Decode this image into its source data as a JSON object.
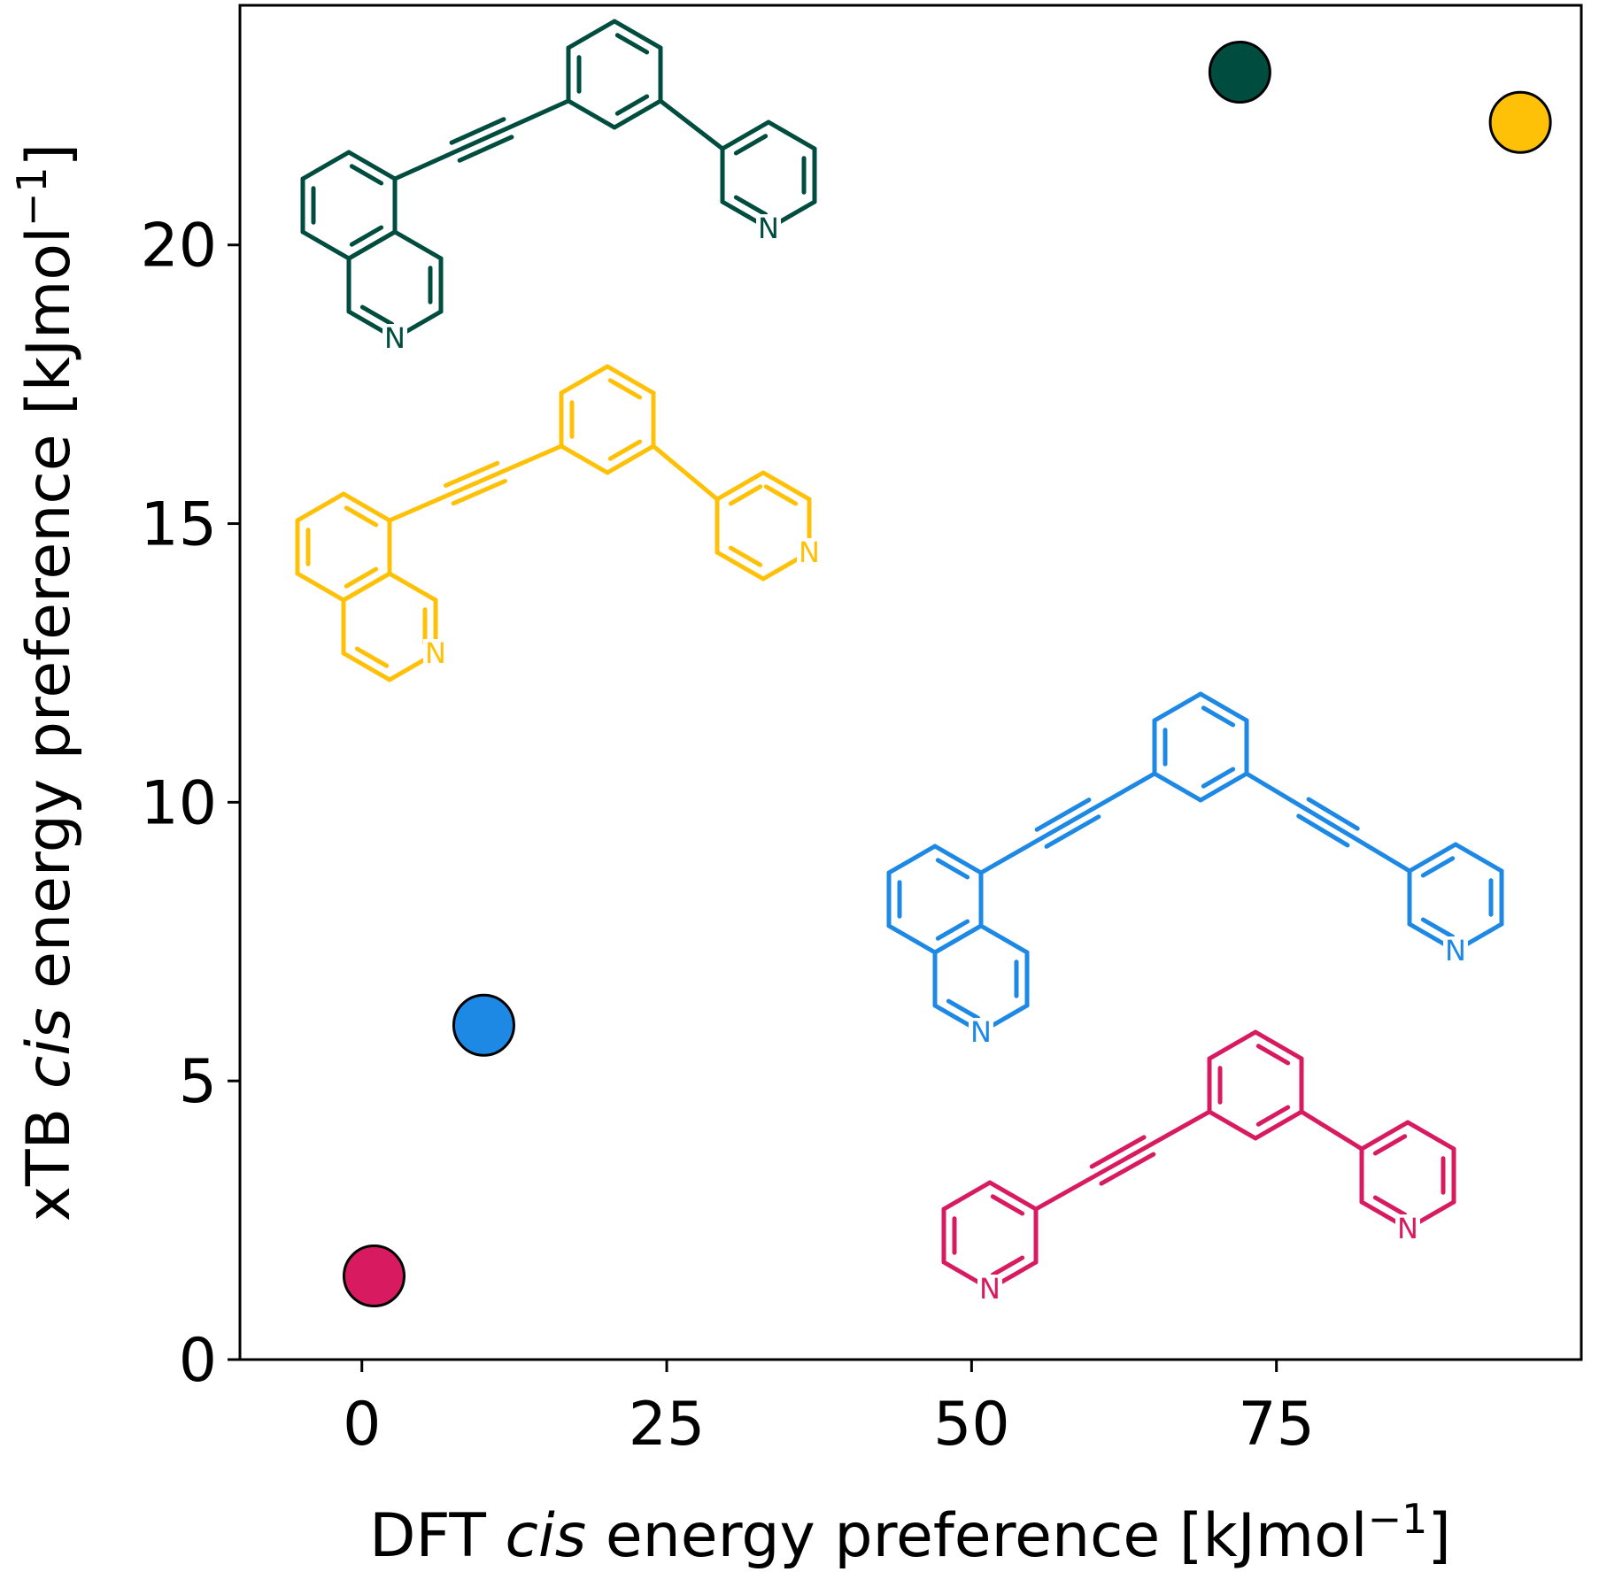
{
  "chart_data": {
    "type": "scatter",
    "xlabel": {
      "pre": "DFT ",
      "italic": "cis",
      "post": " energy preference [kJmol",
      "sup": "−1",
      "end": "]"
    },
    "ylabel": {
      "pre": "xTB ",
      "italic": "cis",
      "post": " energy preference [kJmol",
      "sup": "−1",
      "end": "]"
    },
    "xlim": [
      -10,
      100
    ],
    "ylim": [
      0,
      24.3
    ],
    "x_ticks": [
      0,
      25,
      50,
      75
    ],
    "y_ticks": [
      0,
      5,
      10,
      15,
      20
    ],
    "grid": false,
    "points": [
      {
        "x": 72,
        "y": 23.1,
        "color": "#004d40"
      },
      {
        "x": 95,
        "y": 22.2,
        "color": "#ffc107"
      },
      {
        "x": 10,
        "y": 6.0,
        "color": "#1e88e5"
      },
      {
        "x": 1,
        "y": 1.5,
        "color": "#d81b60"
      }
    ],
    "structure_colors": [
      "#004d40",
      "#ffc107",
      "#1e88e5",
      "#d81b60"
    ],
    "atom_label": "N"
  }
}
